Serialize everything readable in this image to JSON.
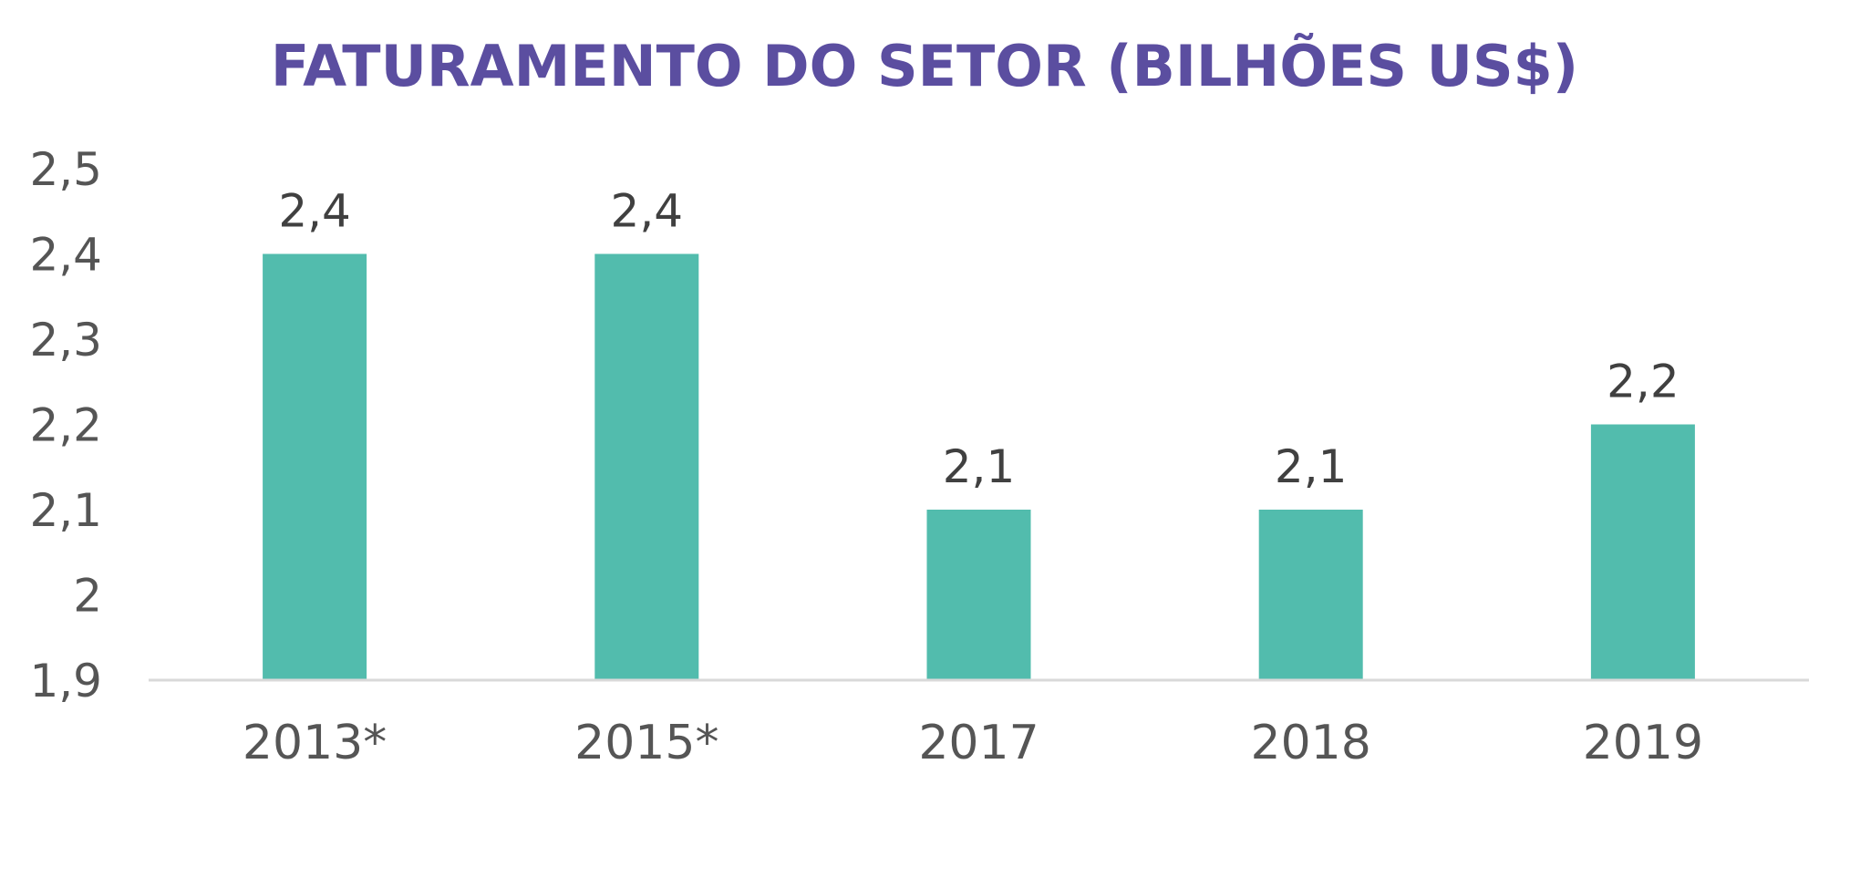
{
  "chart_data": {
    "type": "bar",
    "title": "FATURAMENTO DO SETOR (BILHÕES US$)",
    "categories": [
      "2013*",
      "2015*",
      "2017",
      "2018",
      "2019"
    ],
    "values": [
      2.4,
      2.4,
      2.1,
      2.1,
      2.2
    ],
    "value_labels": [
      "2,4",
      "2,4",
      "2,1",
      "2,1",
      "2,2"
    ],
    "y_ticks": [
      {
        "value": 1.9,
        "label": "1,9"
      },
      {
        "value": 2.0,
        "label": "2"
      },
      {
        "value": 2.1,
        "label": "2,1"
      },
      {
        "value": 2.2,
        "label": "2,2"
      },
      {
        "value": 2.3,
        "label": "2,3"
      },
      {
        "value": 2.4,
        "label": "2,4"
      },
      {
        "value": 2.5,
        "label": "2,5"
      }
    ],
    "ylim": [
      1.9,
      2.5
    ],
    "xlabel": "",
    "ylabel": "",
    "grid": false,
    "legend": "none",
    "colors": {
      "bar": "#52bcad",
      "title": "#5b4ea0",
      "axis_line": "#d9d9d9",
      "tick_text": "#555555",
      "data_label_text": "#404040"
    }
  }
}
